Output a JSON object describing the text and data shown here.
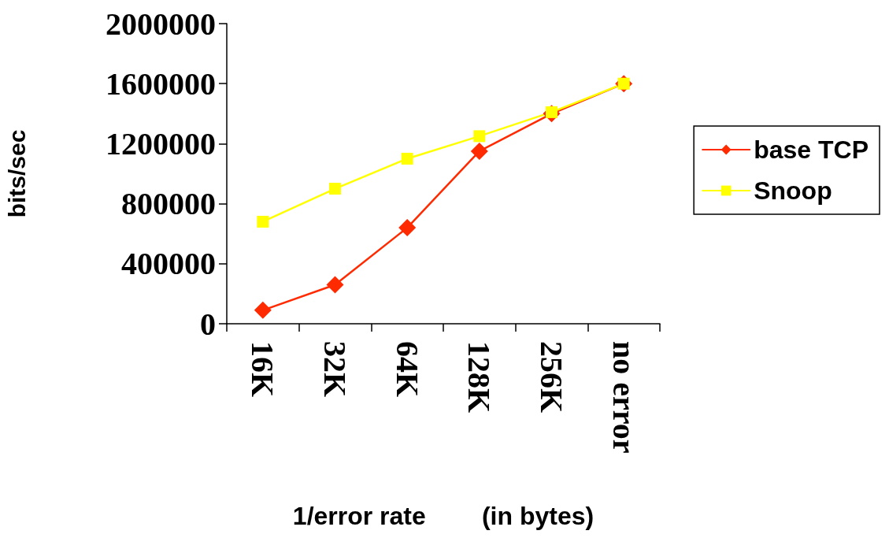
{
  "chart_data": {
    "type": "line",
    "xlabel": "1/error rate        (in bytes)",
    "ylabel": "bits/sec",
    "categories": [
      "16K",
      "32K",
      "64K",
      "128K",
      "256K",
      "no error"
    ],
    "series": [
      {
        "name": "base TCP",
        "color": "#ff2a00",
        "marker": "diamond",
        "values": [
          90000,
          260000,
          640000,
          1150000,
          1400000,
          1600000
        ]
      },
      {
        "name": "Snoop",
        "color": "#ffff00",
        "marker": "square",
        "values": [
          680000,
          900000,
          1100000,
          1250000,
          1410000,
          1600000
        ]
      }
    ],
    "ylim": [
      0,
      2000000
    ],
    "yticks": [
      0,
      400000,
      800000,
      1200000,
      1600000,
      2000000
    ],
    "grid": false,
    "legend": "right",
    "line_style": "solid"
  }
}
